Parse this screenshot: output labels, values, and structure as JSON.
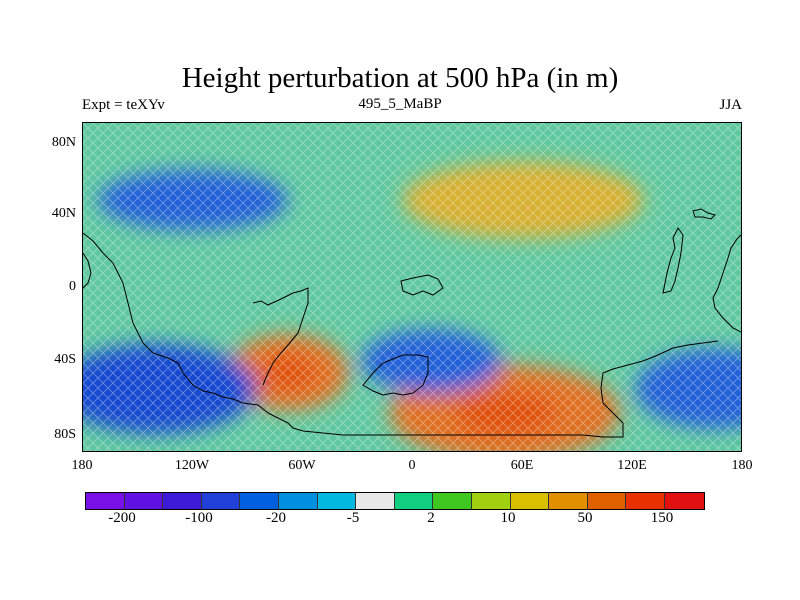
{
  "title": "Height perturbation at 500 hPa (in m)",
  "subtitle_left": "Expt = teXYv",
  "subtitle_center": "495_5_MaBP",
  "subtitle_right": "JJA",
  "y_ticks": [
    "80N",
    "40N",
    "0",
    "40S",
    "80S"
  ],
  "x_ticks": [
    "180",
    "120W",
    "60W",
    "0",
    "60E",
    "120E",
    "180"
  ],
  "colorbar": {
    "colors": [
      "#7a10e8",
      "#6010e0",
      "#3c1cd8",
      "#2040d8",
      "#0060e0",
      "#0090e0",
      "#00b8e0",
      "#e8e8e8",
      "#10d080",
      "#40c820",
      "#a0d010",
      "#d8c000",
      "#e09000",
      "#e06000",
      "#e83000",
      "#e01010"
    ],
    "labels": [
      "-200",
      "-100",
      "-20",
      "-5",
      "2",
      "10",
      "50",
      "150"
    ]
  },
  "map_data": {
    "variable": "500 hPa height perturbation",
    "units": "m",
    "lon_range": [
      -180,
      180
    ],
    "lat_range": [
      -90,
      90
    ],
    "background_color": "#60c8a0",
    "features": [
      {
        "name": "positive-anomaly-ne",
        "lon": 60,
        "lat": 48,
        "value": 60,
        "color": "#d8b030"
      },
      {
        "name": "negative-anomaly-nw",
        "lon": -120,
        "lat": 48,
        "value": -40,
        "color": "#2060d8"
      },
      {
        "name": "positive-anomaly-sa",
        "lon": -68,
        "lat": -46,
        "value": 120,
        "color": "#e07020"
      },
      {
        "name": "positive-anomaly-se",
        "lon": 50,
        "lat": -68,
        "value": 120,
        "color": "#e07020"
      },
      {
        "name": "negative-anomaly-sw",
        "lon": -140,
        "lat": -55,
        "value": -60,
        "color": "#1848d0"
      },
      {
        "name": "negative-anomaly-s",
        "lon": 10,
        "lat": -40,
        "value": -40,
        "color": "#2060d8"
      },
      {
        "name": "negative-anomaly-se",
        "lon": 165,
        "lat": -55,
        "value": -40,
        "color": "#2060d8"
      }
    ]
  }
}
